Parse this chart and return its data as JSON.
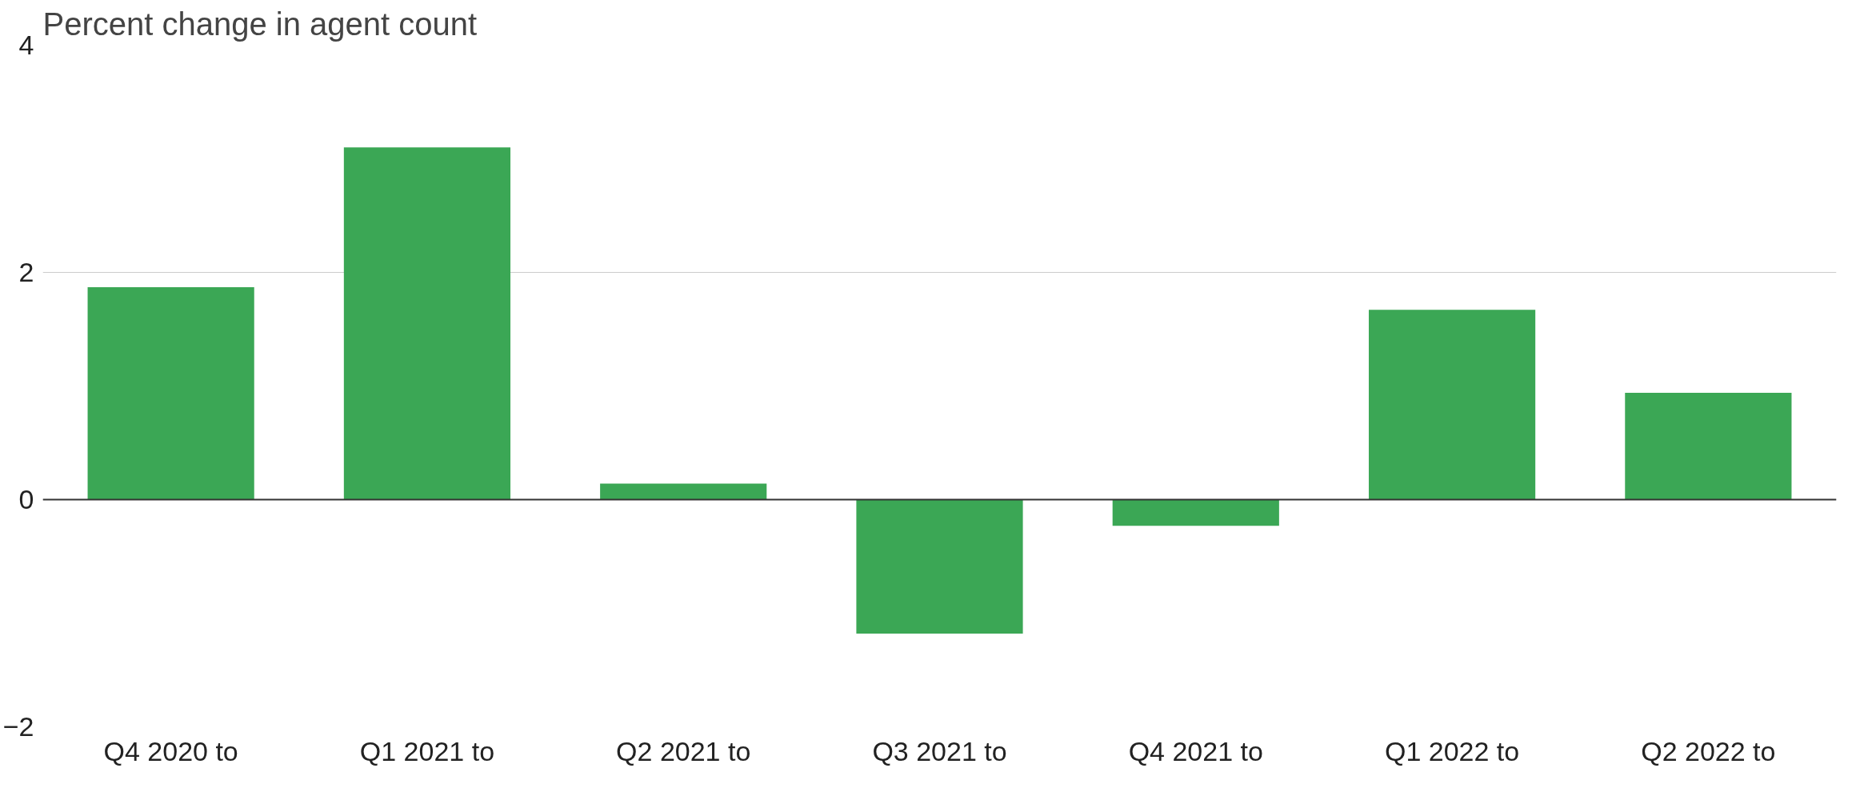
{
  "chart_data": {
    "type": "bar",
    "title": "Percent change in agent count",
    "categories": [
      "Q4 2020 to",
      "Q1 2021 to",
      "Q2 2021 to",
      "Q3 2021 to",
      "Q4 2021 to",
      "Q1 2022 to",
      "Q2 2022 to"
    ],
    "values": [
      1.87,
      3.1,
      0.14,
      -1.18,
      -0.23,
      1.67,
      0.94
    ],
    "color": "#3ba755",
    "ylim": [
      -2,
      4
    ],
    "yticks": [
      -2,
      0,
      2,
      4
    ],
    "grid": "y",
    "ref_lines": [
      {
        "axis": "y",
        "value": 0,
        "color": "#333333"
      }
    ]
  }
}
